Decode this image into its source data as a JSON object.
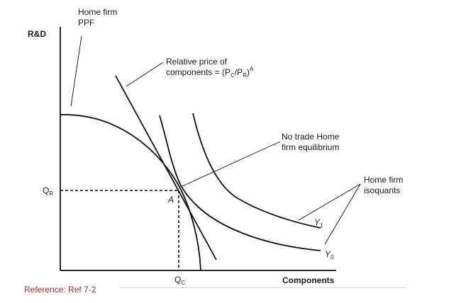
{
  "diagram": {
    "y_axis_label": "R&D",
    "x_axis_label": "Components",
    "ppf_label": [
      "Home firm",
      "PPF"
    ],
    "price_label_line1": "Relative price of",
    "price_label_line2_prefix": "components = (P",
    "price_label_sub_c": "C",
    "price_label_slash": "/P",
    "price_label_sub_r": "R",
    "price_label_close": ")",
    "price_label_sup": "A",
    "equilibrium_label": [
      "No trade Home",
      "firm equilibrium"
    ],
    "isoquants_label": [
      "Home firm",
      "isoquants"
    ],
    "point_label": "A",
    "qr_main": "Q",
    "qr_sub": "R",
    "qc_main": "Q",
    "qc_sub": "C",
    "y1_main": "Y",
    "y1_sub": "1",
    "y0_main": "Y",
    "y0_sub": "0"
  },
  "footer": {
    "reference": "Reference: Ref 7-2"
  }
}
